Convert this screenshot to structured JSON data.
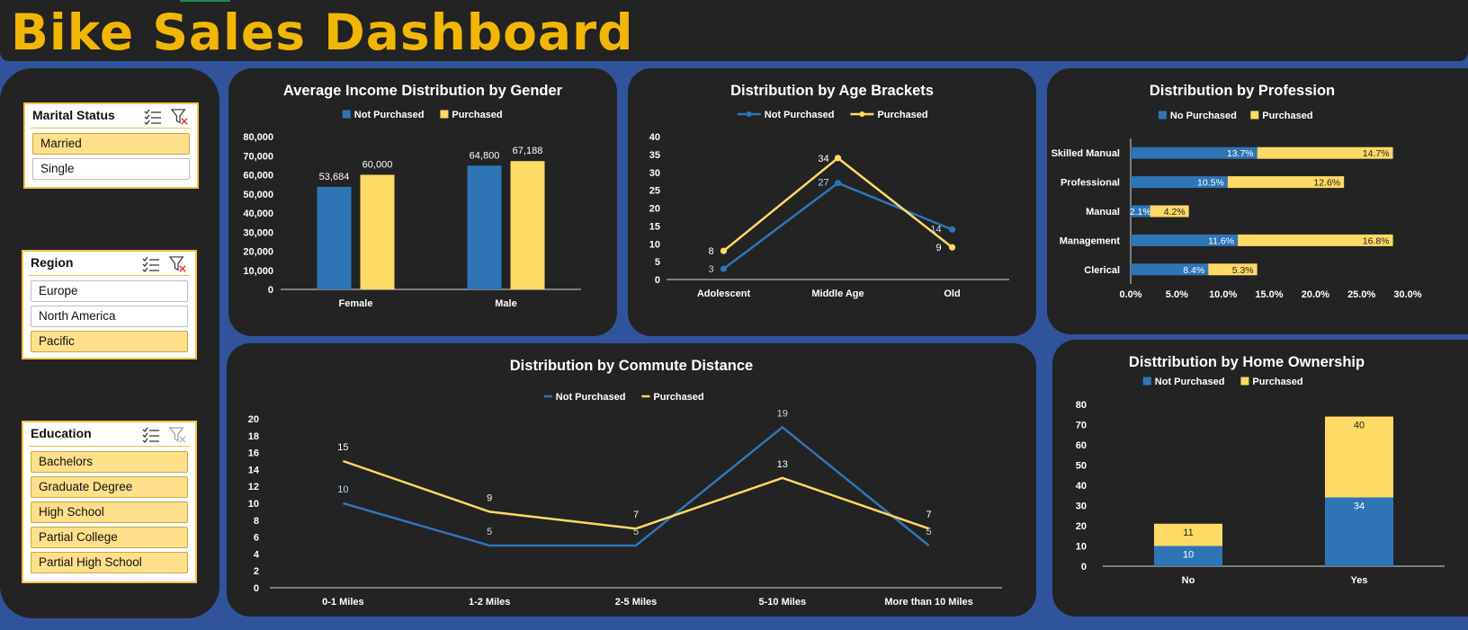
{
  "dashboard_title": "Bike Sales Dashboard",
  "colors": {
    "not_purchased": "#2e75b6",
    "purchased": "#ffd966",
    "panel": "#232323",
    "background": "#2f549b",
    "title": "#f2b705"
  },
  "slicers": [
    {
      "title": "Marital Status",
      "items": [
        {
          "label": "Married",
          "selected": true
        },
        {
          "label": "Single",
          "selected": false
        }
      ]
    },
    {
      "title": "Region",
      "items": [
        {
          "label": "Europe",
          "selected": false
        },
        {
          "label": "North America",
          "selected": false
        },
        {
          "label": "Pacific",
          "selected": true
        }
      ]
    },
    {
      "title": "Education",
      "items": [
        {
          "label": "Bachelors",
          "selected": true
        },
        {
          "label": "Graduate Degree",
          "selected": true
        },
        {
          "label": "High School",
          "selected": true
        },
        {
          "label": "Partial College",
          "selected": true
        },
        {
          "label": "Partial High School",
          "selected": true
        }
      ]
    }
  ],
  "chart_data": [
    {
      "id": "income",
      "type": "bar",
      "title": "Average Income Distribution by Gender",
      "categories": [
        "Female",
        "Male"
      ],
      "series": [
        {
          "name": "Not Purchased",
          "values": [
            53684,
            64800
          ]
        },
        {
          "name": "Purchased",
          "values": [
            60000,
            67188
          ]
        }
      ],
      "value_labels": [
        [
          "53,684",
          "64,800"
        ],
        [
          "60,000",
          "67,188"
        ]
      ],
      "ylim": [
        0,
        80000
      ],
      "yticks": [
        "0",
        "10,000",
        "20,000",
        "30,000",
        "40,000",
        "50,000",
        "60,000",
        "70,000",
        "80,000"
      ],
      "legend": "top",
      "grid": false
    },
    {
      "id": "age",
      "type": "line",
      "title": "Distribution by Age Brackets",
      "categories": [
        "Adolescent",
        "Middle Age",
        "Old"
      ],
      "series": [
        {
          "name": "Not Purchased",
          "values": [
            3,
            27,
            14
          ]
        },
        {
          "name": "Purchased",
          "values": [
            8,
            34,
            9
          ]
        }
      ],
      "ylim": [
        0,
        40
      ],
      "yticks": [
        "0",
        "5",
        "10",
        "15",
        "20",
        "25",
        "30",
        "35",
        "40"
      ],
      "legend": "top",
      "grid": false
    },
    {
      "id": "profession",
      "type": "bar",
      "orientation": "horizontal-stacked",
      "title": "Distribution by Profession",
      "categories": [
        "Skilled Manual",
        "Professional",
        "Manual",
        "Management",
        "Clerical"
      ],
      "series": [
        {
          "name": "No Purchased",
          "values": [
            13.7,
            10.5,
            2.1,
            11.6,
            8.4
          ]
        },
        {
          "name": "Purchased",
          "values": [
            14.7,
            12.6,
            4.2,
            16.8,
            5.3
          ]
        }
      ],
      "value_labels": [
        [
          "13.7%",
          "10.5%",
          "2.1%",
          "11.6%",
          "8.4%"
        ],
        [
          "14.7%",
          "12.6%",
          "4.2%",
          "16.8%",
          "5.3%"
        ]
      ],
      "xlim": [
        0,
        30
      ],
      "xticks": [
        "0.0%",
        "5.0%",
        "10.0%",
        "15.0%",
        "20.0%",
        "25.0%",
        "30.0%"
      ],
      "legend": "top",
      "grid": false
    },
    {
      "id": "commute",
      "type": "line",
      "title": "Distribution by Commute Distance",
      "categories": [
        "0-1 Miles",
        "1-2 Miles",
        "2-5 Miles",
        "5-10 Miles",
        "More than 10 Miles"
      ],
      "series": [
        {
          "name": "Not Purchased",
          "values": [
            10,
            5,
            5,
            19,
            5
          ]
        },
        {
          "name": "Purchased",
          "values": [
            15,
            9,
            7,
            13,
            7
          ]
        }
      ],
      "ylim": [
        0,
        20
      ],
      "yticks": [
        "0",
        "2",
        "4",
        "6",
        "8",
        "10",
        "12",
        "14",
        "16",
        "18",
        "20"
      ],
      "legend": "top",
      "grid": false
    },
    {
      "id": "home",
      "type": "bar",
      "orientation": "vertical-stacked",
      "title": "Disttribution by Home Ownership",
      "categories": [
        "No",
        "Yes"
      ],
      "series": [
        {
          "name": "Not Purchased",
          "values": [
            10,
            34
          ]
        },
        {
          "name": "Purchased",
          "values": [
            11,
            40
          ]
        }
      ],
      "ylim": [
        0,
        80
      ],
      "yticks": [
        "0",
        "10",
        "20",
        "30",
        "40",
        "50",
        "60",
        "70",
        "80"
      ],
      "legend": "top",
      "grid": false
    }
  ]
}
